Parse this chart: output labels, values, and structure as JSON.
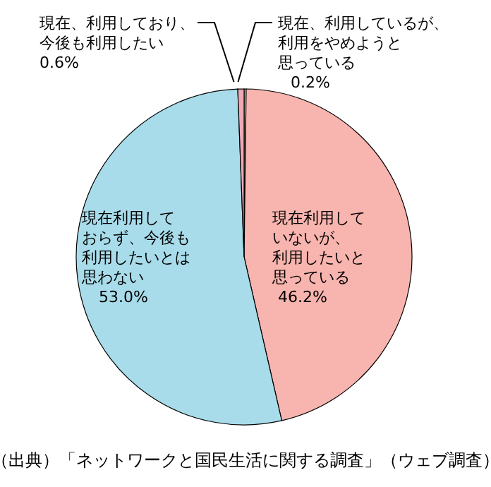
{
  "chart_data": {
    "type": "pie",
    "categories": [
      "現在、利用しているが、利用をやめようと思っている",
      "現在利用していないが、利用したいと思っている",
      "現在利用しておらず、今後も利用したいとは思わない",
      "現在、利用しており、今後も利用したい"
    ],
    "values": [
      0.2,
      46.2,
      53.0,
      0.6
    ],
    "colors": [
      "#c8ecc0",
      "#f8b4ae",
      "#a8dcea",
      "#f0a8b4"
    ],
    "value_labels": [
      "0.2%",
      "46.2%",
      "53.0%",
      "0.6%"
    ],
    "annotations": [
      "（出典）「ネットワークと国民生活に関する調査」（ウェブ調査）"
    ],
    "legend": false
  }
}
